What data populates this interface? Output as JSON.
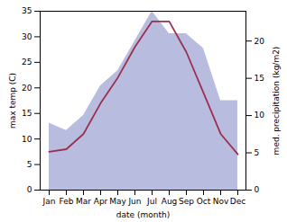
{
  "chart_data": {
    "type": "line",
    "xlabel": "date (month)",
    "ylabel": "max temp (C)",
    "y2label": "med. precipitation (kg/m2)",
    "categories": [
      "Jan",
      "Feb",
      "Mar",
      "Apr",
      "May",
      "Jun",
      "Jul",
      "Aug",
      "Sep",
      "Oct",
      "Nov",
      "Dec"
    ],
    "series": [
      {
        "type": "area",
        "axis": "y2",
        "color": "#b8bde0",
        "values": [
          9,
          8,
          10,
          14,
          16,
          20,
          24,
          21,
          21,
          19,
          12,
          12
        ]
      },
      {
        "type": "line",
        "color": "#9b3050",
        "values": [
          7.5,
          8,
          11,
          17,
          22,
          28,
          33,
          33,
          27,
          19,
          11,
          7
        ]
      }
    ],
    "ylim": [
      0,
      35
    ],
    "yticks": [
      0,
      5,
      10,
      15,
      20,
      25,
      30,
      35
    ],
    "y2lim": [
      0,
      24
    ],
    "y2ticks": [
      0,
      5,
      10,
      15,
      20
    ]
  }
}
